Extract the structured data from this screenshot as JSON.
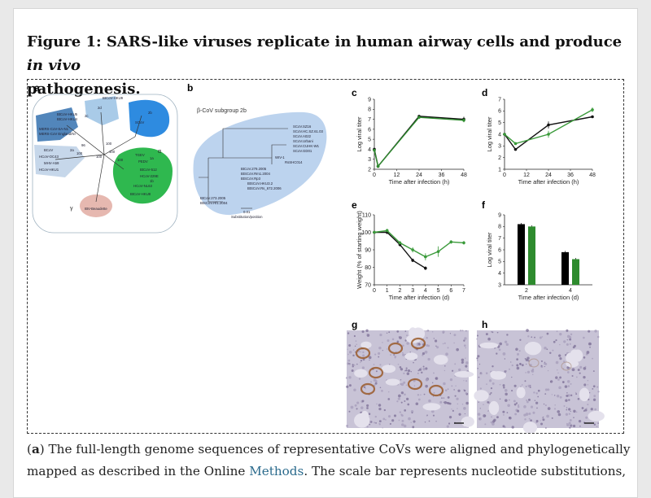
{
  "title": {
    "main": "Figure 1: SARS-like viruses replicate in human airway cells and produce ",
    "italic": "in vivo",
    "line2": "pathogenesis."
  },
  "caption": {
    "line1_bold": "a",
    "line1": ") The full-length genome sequences of representative CoVs were aligned and phylogenetically",
    "line2_pre": "mapped as described in the Online ",
    "line2_link": "Methods",
    "line2_post": ". The scale bar represents nucleotide substitutions,"
  },
  "panels": {
    "a": {
      "label": "a",
      "beta": "β",
      "alpha": "α",
      "gamma": "γ",
      "clades": [
        "2d",
        "2c",
        "2b",
        "2a",
        "1a",
        "1b"
      ],
      "taxa_beta": [
        "BtCoV-HKU9",
        "BtCoV-HKU5",
        "BtCoV-HKU4",
        "MERS-CoV-SA-N1",
        "MERS-CoV England/NI",
        "SCoV",
        "BCoV",
        "HCoV-OC43",
        "MHV-A59",
        "HCoV-HKU1"
      ],
      "taxa_alpha": [
        "TGEV",
        "PEDV",
        "BtCoV-512",
        "HCoV-229E",
        "HCoV-NL63",
        "BtCoV-HKU8"
      ],
      "taxa_gamma": [
        "IBV-Beaudette"
      ],
      "nodes": [
        "100",
        "100",
        "100",
        "100",
        "96",
        "100"
      ]
    },
    "b": {
      "label": "b",
      "heading": "β-CoV subgroup 2b",
      "taxa": [
        "SCoV.SZ16",
        "SCoV.HC.SZ.61.03",
        "SCoV.A022",
        "SCoV.Urbani",
        "SCoV.CUHK-W1",
        "SCoV.GD01",
        "WIV-1",
        "RsSHC014",
        "BtCoV.279.2005",
        "BtSCoV.Rm1.2004",
        "BtSCoV.Rp3",
        "BtSCoV.HKU3.2",
        "BtSCoV.Rs_672.2006",
        "BtCoV.273.2005",
        "BtSCoV.Rf1.2004"
      ],
      "scale": "0.01",
      "scale_label": "Substitution/position"
    },
    "c": {
      "label": "c",
      "chart_data": {
        "type": "line",
        "xlabel": "Time after infection (h)",
        "ylabel": "Log viral titer",
        "xlim": [
          0,
          48
        ],
        "ylim": [
          2,
          9
        ],
        "xticks": [
          "0",
          "12",
          "24",
          "36",
          "48"
        ],
        "yticks": [
          "2",
          "3",
          "4",
          "5",
          "6",
          "7",
          "8",
          "9"
        ],
        "series": [
          {
            "color": "#111111",
            "x": [
              0,
              2,
              24,
              48
            ],
            "y": [
              4.0,
              2.3,
              7.3,
              7.0
            ],
            "err": [
              0.1,
              0.1,
              0.1,
              0.25
            ]
          },
          {
            "color": "#2e8b2e",
            "x": [
              0,
              2,
              24,
              48
            ],
            "y": [
              3.9,
              2.3,
              7.2,
              6.9
            ],
            "err": [
              0.1,
              0.1,
              0.1,
              0.2
            ]
          }
        ]
      }
    },
    "d": {
      "label": "d",
      "chart_data": {
        "type": "line",
        "xlabel": "Time after infection (h)",
        "ylabel": "Log viral titer",
        "xlim": [
          0,
          48
        ],
        "ylim": [
          1,
          7
        ],
        "xticks": [
          "0",
          "12",
          "24",
          "36",
          "48"
        ],
        "yticks": [
          "1",
          "2",
          "3",
          "4",
          "5",
          "6",
          "7"
        ],
        "series": [
          {
            "color": "#111111",
            "x": [
              0,
              6,
              24,
              48
            ],
            "y": [
              4.0,
              2.7,
              4.8,
              5.5
            ],
            "err": [
              0.1,
              0.1,
              0.3,
              0.1
            ]
          },
          {
            "color": "#3a9a3a",
            "x": [
              0,
              6,
              24,
              48
            ],
            "y": [
              4.0,
              3.2,
              4.0,
              6.1
            ],
            "err": [
              0.1,
              0.1,
              0.3,
              0.2
            ]
          }
        ]
      }
    },
    "e": {
      "label": "e",
      "chart_data": {
        "type": "line",
        "xlabel": "Time after infection (d)",
        "ylabel": "Weight (% of starting weight)",
        "xlim": [
          0,
          7
        ],
        "ylim": [
          70,
          110
        ],
        "xticks": [
          "0",
          "1",
          "2",
          "3",
          "4",
          "5",
          "6",
          "7"
        ],
        "yticks": [
          "70",
          "80",
          "90",
          "100",
          "110"
        ],
        "series": [
          {
            "color": "#111111",
            "x": [
              0,
              1,
              2,
              3,
              4
            ],
            "y": [
              100,
              100,
              93,
              84,
              79.5
            ],
            "err": [
              0.5,
              1,
              1,
              1,
              1
            ]
          },
          {
            "color": "#3a9a3a",
            "x": [
              0,
              1,
              2,
              3,
              4,
              5,
              6,
              7
            ],
            "y": [
              100,
              101,
              94,
              90,
              86,
              89,
              94.5,
              94
            ],
            "err": [
              0.5,
              1,
              1,
              1.5,
              2,
              3,
              1,
              1
            ]
          }
        ]
      }
    },
    "f": {
      "label": "f",
      "chart_data": {
        "type": "bar",
        "xlabel": "Time after infection (d)",
        "ylabel": "Log viral titer",
        "ylim": [
          3,
          9
        ],
        "categories": [
          "2",
          "4"
        ],
        "yticks": [
          "3",
          "4",
          "5",
          "6",
          "7",
          "8",
          "9"
        ],
        "series": [
          {
            "color": "#000000",
            "values": [
              8.2,
              5.8
            ]
          },
          {
            "color": "#2e8b2e",
            "values": [
              8.0,
              5.2
            ]
          }
        ]
      }
    },
    "g": {
      "label": "g"
    },
    "h": {
      "label": "h"
    }
  }
}
